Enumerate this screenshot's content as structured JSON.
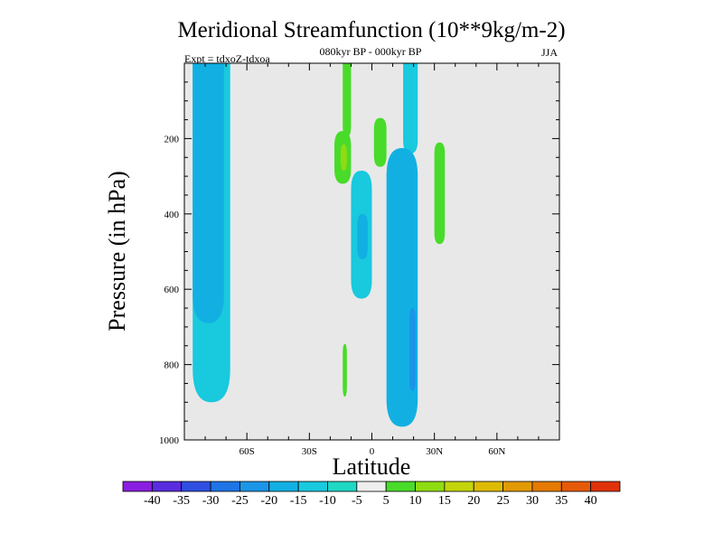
{
  "chart_data": {
    "type": "contour",
    "title": "Meridional Streamfunction (10**9kg/m-2)",
    "subtitle_center": "080kyr BP - 000kyr BP",
    "subtitle_left": "Expt = tdxoZ-tdxoa",
    "subtitle_right": "JJA",
    "xlabel": "Latitude",
    "ylabel": "Pressure (in hPa)",
    "xlim": [
      -90,
      90
    ],
    "ylim": [
      1000,
      0
    ],
    "x_ticks": [
      {
        "value": -60,
        "label": "60S"
      },
      {
        "value": -30,
        "label": "30S"
      },
      {
        "value": 0,
        "label": "0"
      },
      {
        "value": 30,
        "label": "30N"
      },
      {
        "value": 60,
        "label": "60N"
      }
    ],
    "y_ticks": [
      {
        "value": 200,
        "label": "200"
      },
      {
        "value": 400,
        "label": "400"
      },
      {
        "value": 600,
        "label": "600"
      },
      {
        "value": 800,
        "label": "800"
      },
      {
        "value": 1000,
        "label": "1000"
      }
    ],
    "background_fill": "#e8e8e8",
    "colorbar": {
      "levels": [
        "-40",
        "-35",
        "-30",
        "-25",
        "-20",
        "-15",
        "-10",
        "-5",
        "5",
        "10",
        "15",
        "20",
        "25",
        "30",
        "35",
        "40"
      ],
      "colors": [
        "#8a1ee0",
        "#5a2ce0",
        "#2f4fe2",
        "#1f74e6",
        "#1b95e8",
        "#12b0e2",
        "#19c9de",
        "#1fd8c4",
        "#eeeeee",
        "#49db2a",
        "#8fdc12",
        "#c3d40a",
        "#ddbb05",
        "#e29a04",
        "#e57a04",
        "#e55a08",
        "#e0320a"
      ]
    },
    "regions": [
      {
        "name": "southern-tropical-negative-cell",
        "level": -10,
        "lat_range": [
          -86,
          -68
        ],
        "p_range": [
          0,
          900
        ]
      },
      {
        "name": "southern-inner-negative-core",
        "level": -15,
        "lat_range": [
          -86,
          -71
        ],
        "p_range": [
          0,
          690
        ]
      },
      {
        "name": "upper-positive-strip",
        "level": 5,
        "lat_range": [
          -14,
          -10
        ],
        "p_range": [
          0,
          195
        ]
      },
      {
        "name": "positive-patch-250",
        "level": 5,
        "lat_range": [
          -18,
          -10
        ],
        "p_range": [
          180,
          320
        ]
      },
      {
        "name": "positive-core-250",
        "level": 10,
        "lat_range": [
          -15,
          -12
        ],
        "p_range": [
          215,
          285
        ]
      },
      {
        "name": "positive-patch-200",
        "level": 5,
        "lat_range": [
          1,
          7
        ],
        "p_range": [
          145,
          275
        ]
      },
      {
        "name": "positive-patch-780",
        "level": 5,
        "lat_range": [
          -14,
          -12
        ],
        "p_range": [
          745,
          885
        ]
      },
      {
        "name": "equatorial-negative-cell",
        "level": -10,
        "lat_range": [
          -10,
          0
        ],
        "p_range": [
          285,
          625
        ]
      },
      {
        "name": "equatorial-negative-core",
        "level": -15,
        "lat_range": [
          -7,
          -2
        ],
        "p_range": [
          400,
          520
        ]
      },
      {
        "name": "northern-negative-column",
        "level": -10,
        "lat_range": [
          15,
          22
        ],
        "p_range": [
          0,
          240
        ]
      },
      {
        "name": "northern-negative-cell",
        "level": -15,
        "lat_range": [
          7,
          22
        ],
        "p_range": [
          225,
          965
        ]
      },
      {
        "name": "northern-negative-core-lower",
        "level": -20,
        "lat_range": [
          18,
          21
        ],
        "p_range": [
          650,
          870
        ]
      },
      {
        "name": "northern-positive-patch",
        "level": 5,
        "lat_range": [
          30,
          35
        ],
        "p_range": [
          210,
          480
        ]
      }
    ]
  }
}
